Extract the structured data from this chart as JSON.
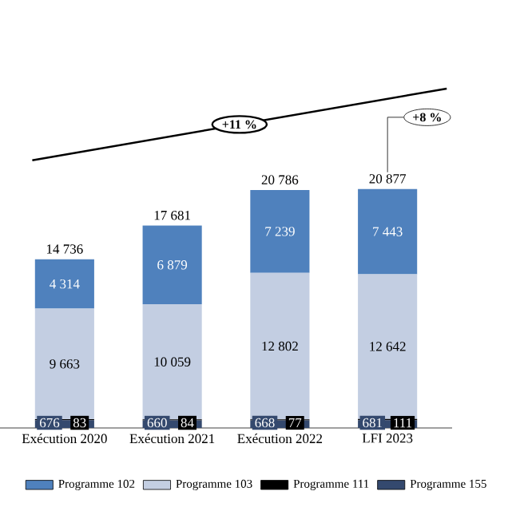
{
  "chart_data": {
    "type": "bar",
    "stacked": true,
    "categories": [
      "Exécution 2020",
      "Exécution 2021",
      "Exécution 2022",
      "LFI 2023"
    ],
    "series": [
      {
        "name": "Programme 155",
        "color": "#34496e",
        "values": [
          676,
          660,
          668,
          681
        ],
        "value_labels": [
          "676",
          "660",
          "668",
          "681"
        ]
      },
      {
        "name": "Programme 111",
        "color": "#000000",
        "values": [
          83,
          84,
          77,
          111
        ],
        "value_labels": [
          "83",
          "84",
          "77",
          "111"
        ]
      },
      {
        "name": "Programme 103",
        "color": "#c3cee2",
        "values": [
          9663,
          10059,
          12802,
          12642
        ],
        "value_labels": [
          "9 663",
          "10 059",
          "12 802",
          "12 642"
        ]
      },
      {
        "name": "Programme 102",
        "color": "#4f81bd",
        "values": [
          4314,
          6879,
          7239,
          7443
        ],
        "value_labels": [
          "4 314",
          "6 879",
          "7 239",
          "7 443"
        ]
      }
    ],
    "totals": [
      "14 736",
      "17 681",
      "20 786",
      "20 877"
    ],
    "annotations": [
      "+11 %",
      "+8 %"
    ],
    "legend": "bottom"
  }
}
